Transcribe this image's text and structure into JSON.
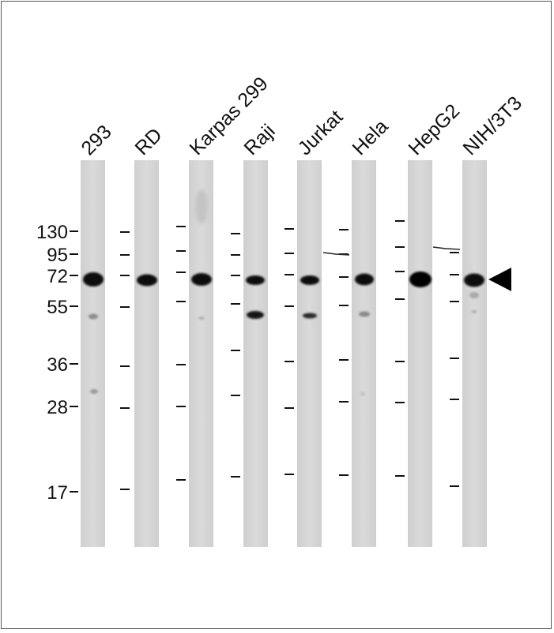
{
  "blot": {
    "lanes": [
      {
        "name": "293"
      },
      {
        "name": "RD"
      },
      {
        "name": "Karpas 299"
      },
      {
        "name": "Raji"
      },
      {
        "name": "Jurkat"
      },
      {
        "name": "Hela"
      },
      {
        "name": "HepG2"
      },
      {
        "name": "NIH/3T3"
      }
    ],
    "mw_markers": [
      "130",
      "95",
      "72",
      "55",
      "36",
      "28",
      "17"
    ],
    "colors": {
      "lane": "#d6d6d6",
      "band": "#0a0a0a",
      "arrow": "#000000"
    },
    "icons": {
      "target_band_marker": "arrowhead-left-icon"
    }
  }
}
